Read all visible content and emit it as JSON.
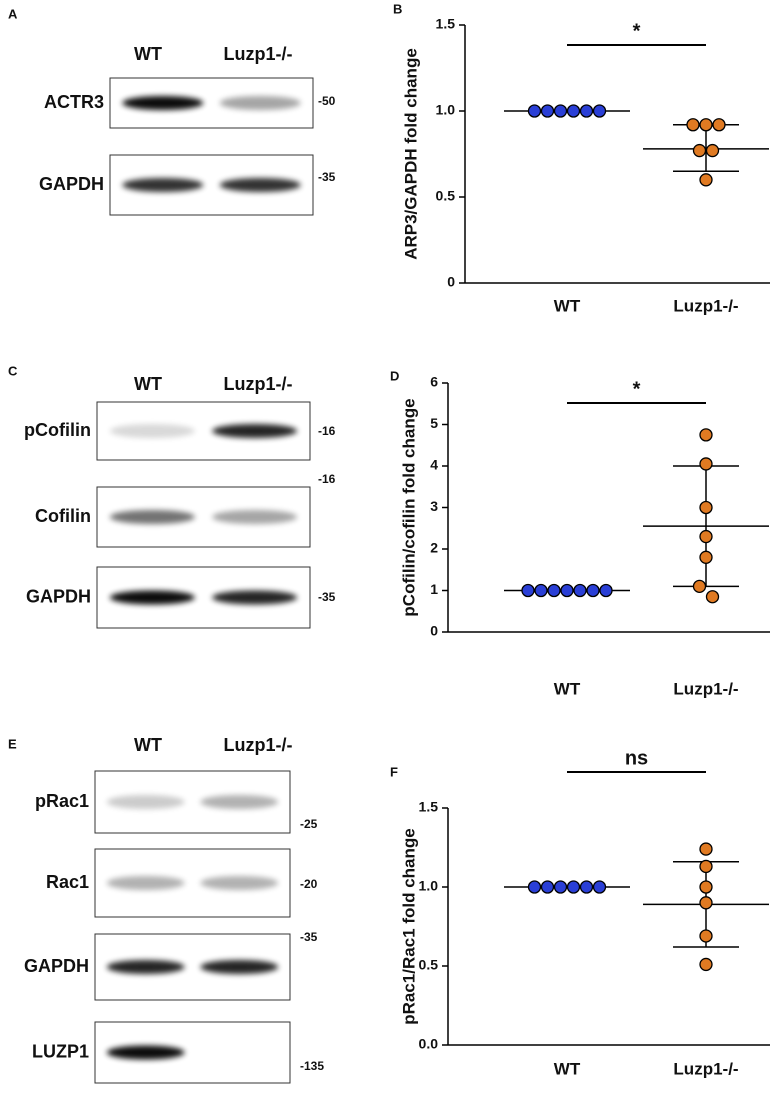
{
  "blots": [
    {
      "panel": "A",
      "lanes": [
        "WT",
        "Luzp1-/-"
      ],
      "rows": [
        {
          "label": "ACTR3",
          "marker": "-50"
        },
        {
          "label": "GAPDH",
          "marker": "-35"
        }
      ]
    },
    {
      "panel": "C",
      "lanes": [
        "WT",
        "Luzp1-/-"
      ],
      "rows": [
        {
          "label": "pCofilin",
          "marker": "-16"
        },
        {
          "label": "Cofilin",
          "marker": "-16"
        },
        {
          "label": "GAPDH",
          "marker": "-35"
        }
      ]
    },
    {
      "panel": "E",
      "lanes": [
        "WT",
        "Luzp1-/-"
      ],
      "rows": [
        {
          "label": "pRac1",
          "marker": "-25"
        },
        {
          "label": "Rac1",
          "marker": "-20"
        },
        {
          "label": "GAPDH",
          "marker": "-35"
        },
        {
          "label": "LUZP1",
          "marker": "-135"
        }
      ]
    }
  ],
  "chart_data": [
    {
      "type": "scatter",
      "panel": "B",
      "y_label": "ARP3/GAPDH fold change",
      "categories": [
        "WT",
        "Luzp1-/-"
      ],
      "series": [
        {
          "color": "#2a3fd6",
          "values": [
            1,
            1,
            1,
            1,
            1,
            1
          ],
          "mean": 1
        },
        {
          "color": "#e07a22",
          "values": [
            0.92,
            0.92,
            0.92,
            0.77,
            0.77,
            0.6
          ],
          "mean": 0.78,
          "error": [
            0.65,
            0.92
          ]
        }
      ],
      "significance": "*",
      "ylim": [
        0,
        1.5
      ],
      "yticks": [
        0,
        0.5,
        {
          "value": 1,
          "label": "1.0"
        },
        1.5
      ]
    },
    {
      "type": "scatter",
      "panel": "D",
      "y_label": "pCofilin/cofilin fold change",
      "categories": [
        "WT",
        "Luzp1-/-"
      ],
      "series": [
        {
          "color": "#2a3fd6",
          "values": [
            1,
            1,
            1,
            1,
            1,
            1,
            1
          ],
          "mean": 1
        },
        {
          "color": "#e07a22",
          "values": [
            4.75,
            4.05,
            3.0,
            2.3,
            1.8,
            1.1,
            0.85
          ],
          "mean": 2.55,
          "error": [
            1.1,
            4.0
          ]
        }
      ],
      "significance": "*",
      "ylim": [
        0,
        6
      ],
      "yticks": [
        0,
        1,
        2,
        3,
        4,
        5,
        6
      ]
    },
    {
      "type": "scatter",
      "panel": "F",
      "y_label": "pRac1/Rac1 fold change",
      "categories": [
        "WT",
        "Luzp1-/-"
      ],
      "series": [
        {
          "color": "#2a3fd6",
          "values": [
            1,
            1,
            1,
            1,
            1,
            1
          ],
          "mean": 1
        },
        {
          "color": "#e07a22",
          "values": [
            1.24,
            1.13,
            1.0,
            0.9,
            0.69,
            0.51
          ],
          "mean": 0.89,
          "error": [
            0.62,
            1.16
          ]
        }
      ],
      "significance": "ns",
      "ylim": [
        0,
        1.5
      ],
      "yticks": [
        {
          "value": 0,
          "label": "0.0"
        },
        0.5,
        {
          "value": 1,
          "label": "1.0"
        },
        1.5
      ]
    }
  ]
}
